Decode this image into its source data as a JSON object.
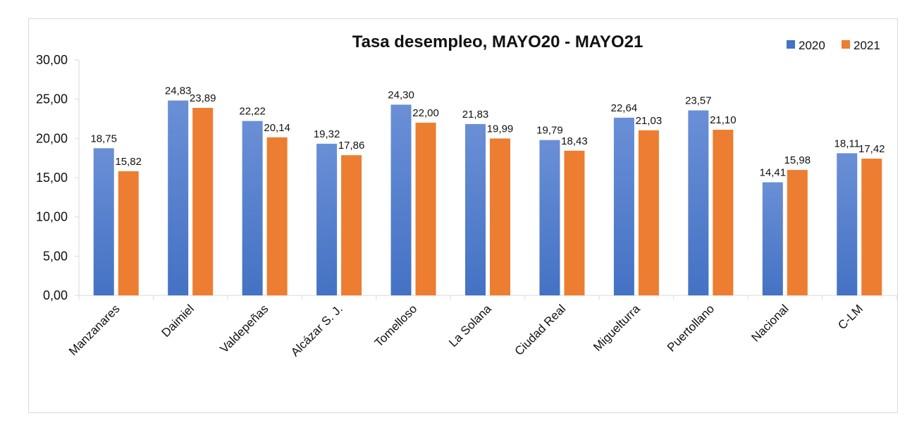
{
  "chart_data": {
    "type": "bar",
    "title": "Tasa desempleo, MAYO20 - MAYO21",
    "xlabel": "",
    "ylabel": "",
    "ylim": [
      0,
      30
    ],
    "yticks": [
      "0,00",
      "5,00",
      "10,00",
      "15,00",
      "20,00",
      "25,00",
      "30,00"
    ],
    "grid": false,
    "legend_position": "top-right",
    "categories": [
      "Manzanares",
      "Daimiel",
      "Valdepeñas",
      "Alcázar S. J.",
      "Tomelloso",
      "La Solana",
      "Ciudad Real",
      "Miguelturra",
      "Puertollano",
      "Nacional",
      "C-LM"
    ],
    "series": [
      {
        "name": "2020",
        "color": "#4472C4",
        "values": [
          18.75,
          24.83,
          22.22,
          19.32,
          24.3,
          21.83,
          19.79,
          22.64,
          23.57,
          14.41,
          18.11
        ],
        "labels": [
          "18,75",
          "24,83",
          "22,22",
          "19,32",
          "24,30",
          "21,83",
          "19,79",
          "22,64",
          "23,57",
          "14,41",
          "18,11"
        ]
      },
      {
        "name": "2021",
        "color": "#ED7D31",
        "values": [
          15.82,
          23.89,
          20.14,
          17.86,
          22.0,
          19.99,
          18.43,
          21.03,
          21.1,
          15.98,
          17.42
        ],
        "labels": [
          "15,82",
          "23,89",
          "20,14",
          "17,86",
          "22,00",
          "19,99",
          "18,43",
          "21,03",
          "21,10",
          "15,98",
          "17,42"
        ]
      }
    ]
  }
}
